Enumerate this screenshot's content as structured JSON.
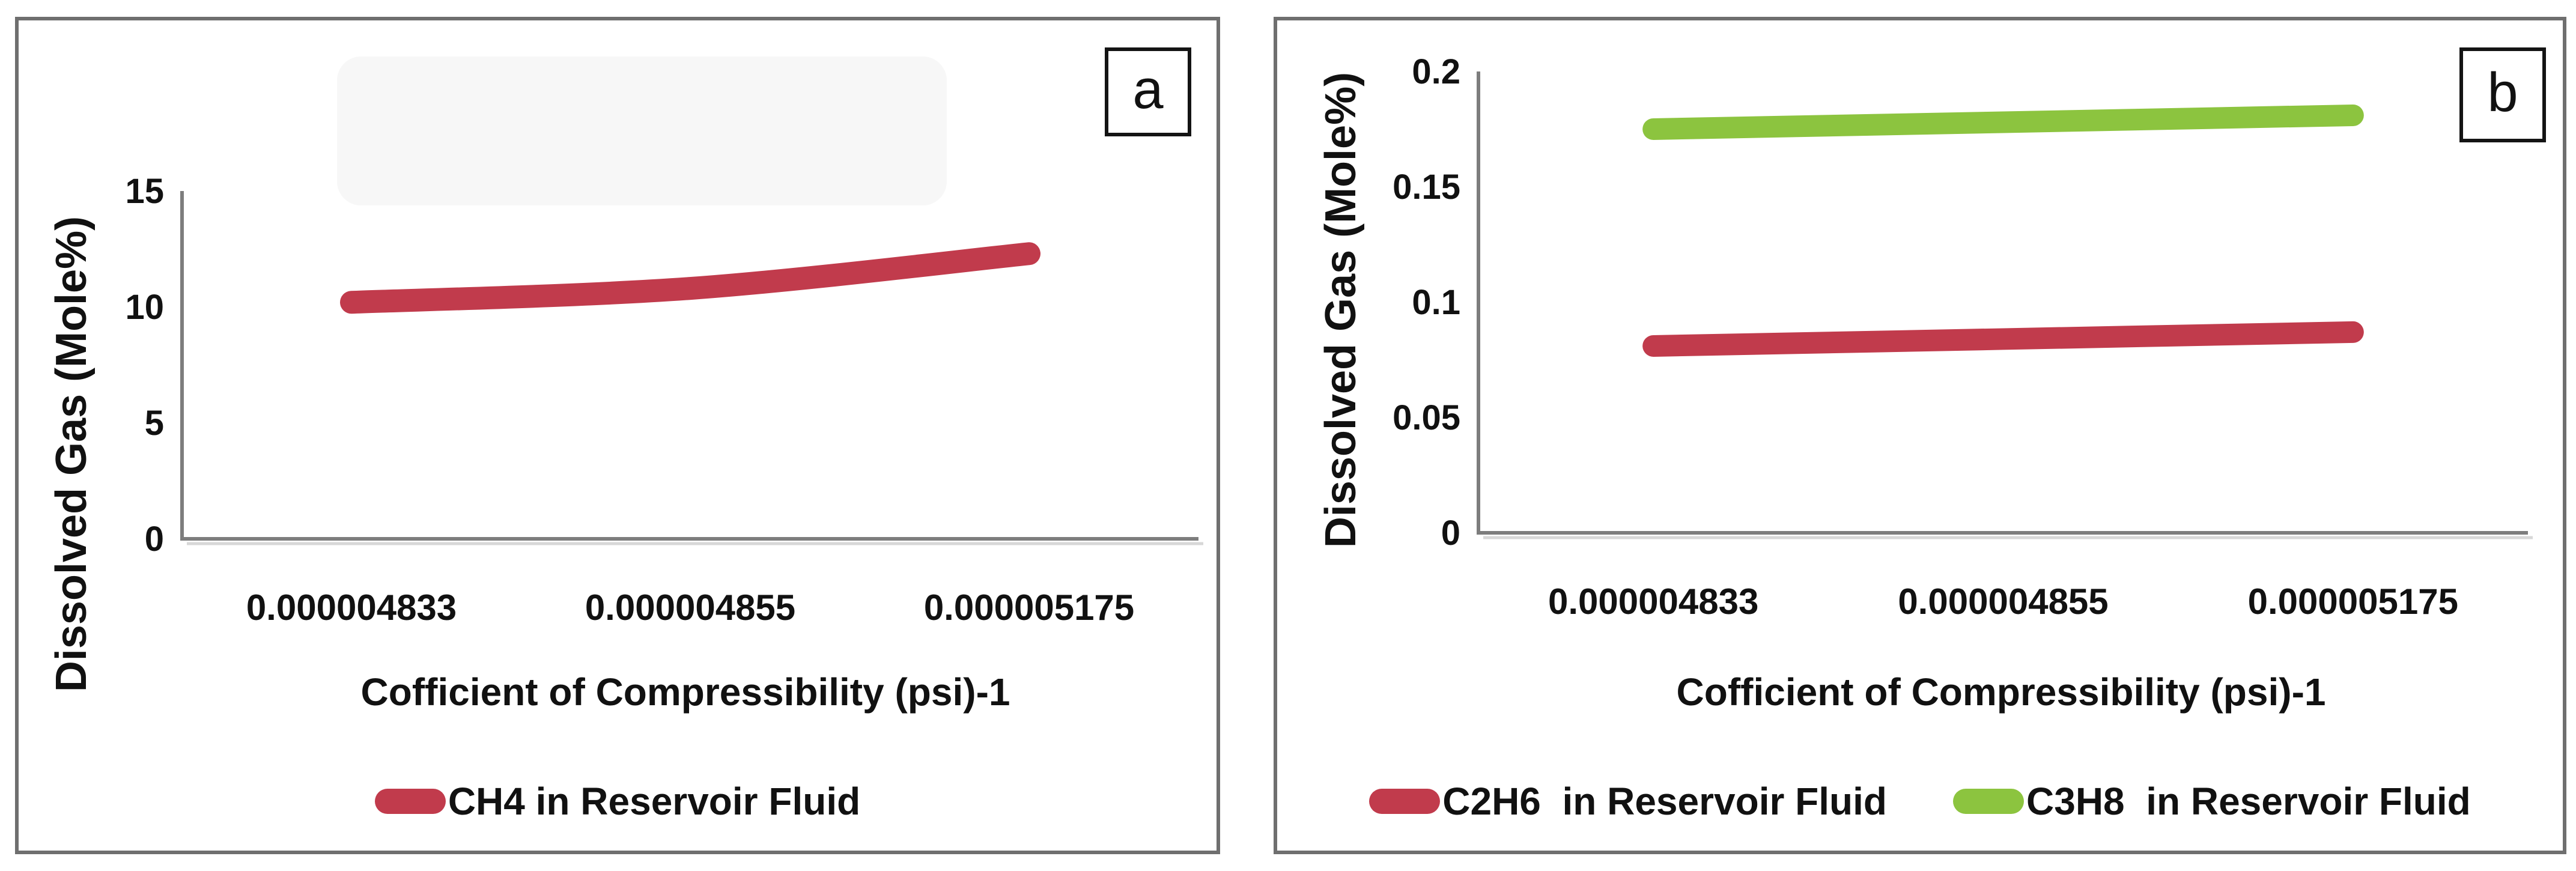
{
  "figure": {
    "background": "#ffffff",
    "panel_border_color": "#6f6f6f",
    "text_color": "#111111",
    "axis_color": "#7d7d7d"
  },
  "chart_data": [
    {
      "type": "line",
      "panel_label": "a",
      "title": "",
      "xlabel": "Cofficient of Compressibility (psi)-1",
      "ylabel": "Dissolved Gas (Mole%)",
      "categories": [
        "0.000004833",
        "0.000004855",
        "0.000005175"
      ],
      "y_tick_labels": [
        "0",
        "5",
        "10",
        "15"
      ],
      "ylim": [
        0,
        15
      ],
      "grid": false,
      "legend_position": "bottom",
      "series": [
        {
          "name": "CH4 in Reservoir Fluid",
          "color": "#c13b4c",
          "values": [
            10.2,
            10.8,
            12.3
          ]
        }
      ]
    },
    {
      "type": "line",
      "panel_label": "b",
      "title": "",
      "xlabel": "Cofficient of Compressibility (psi)-1",
      "ylabel": "Dissolved Gas (Mole%)",
      "categories": [
        "0.000004833",
        "0.000004855",
        "0.000005175"
      ],
      "y_tick_labels": [
        "0",
        "0.05",
        "0.1",
        "0.15",
        "0.2"
      ],
      "ylim": [
        0,
        0.2
      ],
      "grid": false,
      "legend_position": "bottom",
      "series": [
        {
          "name": "C2H6  in Reservoir Fluid",
          "color": "#c13b4c",
          "values": [
            0.081,
            0.084,
            0.087
          ]
        },
        {
          "name": "C3H8  in Reservoir Fluid",
          "color": "#8cc43f",
          "values": [
            0.175,
            0.178,
            0.181
          ]
        }
      ]
    }
  ]
}
